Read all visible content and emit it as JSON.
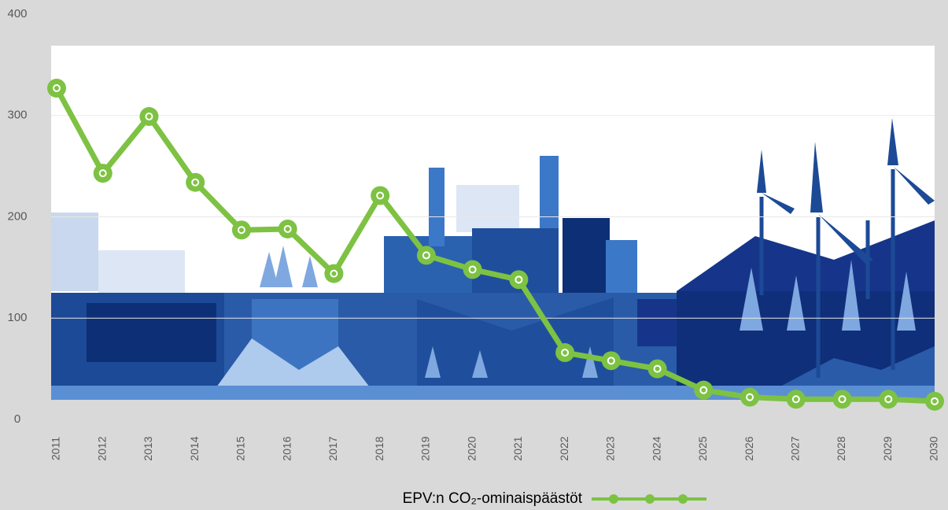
{
  "chart_data": {
    "type": "line",
    "x": [
      "2011",
      "2012",
      "2013",
      "2014",
      "2015",
      "2016",
      "2017",
      "2018",
      "2019",
      "2020",
      "2021",
      "2022",
      "2023",
      "2024",
      "2025",
      "2026",
      "2027",
      "2028",
      "2029",
      "2030"
    ],
    "series": [
      {
        "name": "EPV:n CO₂-ominaispäästöt",
        "color": "#7dc242",
        "values": [
          327,
          243,
          299,
          234,
          187,
          188,
          144,
          221,
          162,
          148,
          138,
          66,
          58,
          50,
          29,
          22,
          20,
          20,
          20,
          18
        ]
      }
    ],
    "ylim": [
      0,
      400
    ],
    "yticks": [
      0,
      100,
      200,
      300,
      400
    ],
    "grid": true,
    "legend": "bottom"
  }
}
